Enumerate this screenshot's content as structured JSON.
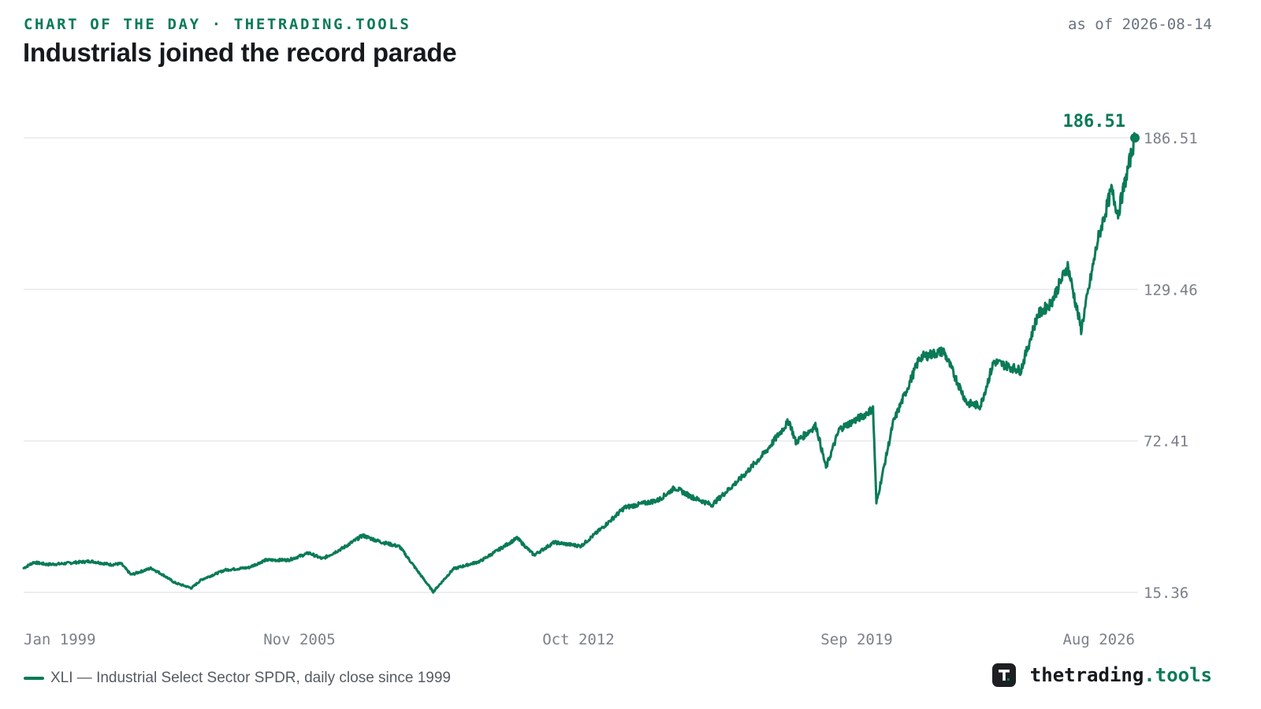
{
  "header": {
    "kicker": "CHART OF THE DAY · THETRADING.TOOLS",
    "title": "Industrials joined the record parade",
    "as_of": "as of 2026-08-14"
  },
  "legend": {
    "label": "XLI — Industrial Select Sector SPDR, daily close since 1999"
  },
  "brand": {
    "icon": "brand-t-icon",
    "name_main": "thetrading",
    "name_accent": ".tools"
  },
  "colors": {
    "line": "#0a7a57",
    "grid": "#e7e9ec",
    "axis_text": "#7b8088"
  },
  "chart_data": {
    "type": "line",
    "title": "Industrials joined the record parade",
    "xlabel": "",
    "ylabel": "",
    "y_axis_position": "right",
    "grid": true,
    "ylim": [
      15.36,
      186.51
    ],
    "y_ticks": [
      "15.36",
      "72.41",
      "129.46",
      "186.51"
    ],
    "x_ticks": [
      "Jan 1999",
      "Nov 2005",
      "Oct 2012",
      "Sep 2019",
      "Aug 2026"
    ],
    "last_value_label": "186.51",
    "series": [
      {
        "name": "XLI",
        "points": [
          [
            "1999-01",
            24.5
          ],
          [
            "1999-04",
            26.7
          ],
          [
            "1999-08",
            25.9
          ],
          [
            "1999-12",
            26.1
          ],
          [
            "2000-04",
            26.6
          ],
          [
            "2000-09",
            27.1
          ],
          [
            "2001-03",
            25.8
          ],
          [
            "2001-06",
            26.2
          ],
          [
            "2001-09",
            22.0
          ],
          [
            "2002-03",
            24.5
          ],
          [
            "2002-07",
            21.6
          ],
          [
            "2002-10",
            19.0
          ],
          [
            "2003-03",
            17.0
          ],
          [
            "2003-06",
            20.2
          ],
          [
            "2004-01",
            23.8
          ],
          [
            "2004-08",
            24.7
          ],
          [
            "2005-01",
            27.5
          ],
          [
            "2005-08",
            27.6
          ],
          [
            "2006-02",
            30.2
          ],
          [
            "2006-06",
            28.0
          ],
          [
            "2006-12",
            32.0
          ],
          [
            "2007-06",
            36.8
          ],
          [
            "2007-11",
            34.5
          ],
          [
            "2008-05",
            32.6
          ],
          [
            "2008-10",
            24.0
          ],
          [
            "2009-03",
            15.6
          ],
          [
            "2009-09",
            24.2
          ],
          [
            "2010-05",
            27.1
          ],
          [
            "2011-04",
            35.8
          ],
          [
            "2011-09",
            29.4
          ],
          [
            "2012-03",
            34.2
          ],
          [
            "2012-11",
            32.8
          ],
          [
            "2013-06",
            40.4
          ],
          [
            "2013-12",
            47.3
          ],
          [
            "2014-10",
            50.1
          ],
          [
            "2015-03",
            54.8
          ],
          [
            "2015-08",
            51.3
          ],
          [
            "2016-02",
            48.3
          ],
          [
            "2016-11",
            58.8
          ],
          [
            "2017-06",
            68.3
          ],
          [
            "2018-01",
            80.0
          ],
          [
            "2018-03",
            71.9
          ],
          [
            "2018-09",
            78.2
          ],
          [
            "2018-12",
            62.3
          ],
          [
            "2019-04",
            76.9
          ],
          [
            "2019-11",
            81.8
          ],
          [
            "2020-02",
            84.6
          ],
          [
            "2020-03",
            48.9
          ],
          [
            "2020-08",
            79.3
          ],
          [
            "2021-04",
            103.9
          ],
          [
            "2021-11",
            106.2
          ],
          [
            "2022-06",
            86.6
          ],
          [
            "2022-10",
            85.6
          ],
          [
            "2023-02",
            102.3
          ],
          [
            "2023-10",
            98.9
          ],
          [
            "2024-03",
            119.7
          ],
          [
            "2024-07",
            124.3
          ],
          [
            "2024-12",
            138.3
          ],
          [
            "2025-04",
            114.4
          ],
          [
            "2025-09",
            148.3
          ],
          [
            "2026-01",
            166.8
          ],
          [
            "2026-03",
            158.0
          ],
          [
            "2026-08",
            186.51
          ]
        ]
      }
    ]
  }
}
